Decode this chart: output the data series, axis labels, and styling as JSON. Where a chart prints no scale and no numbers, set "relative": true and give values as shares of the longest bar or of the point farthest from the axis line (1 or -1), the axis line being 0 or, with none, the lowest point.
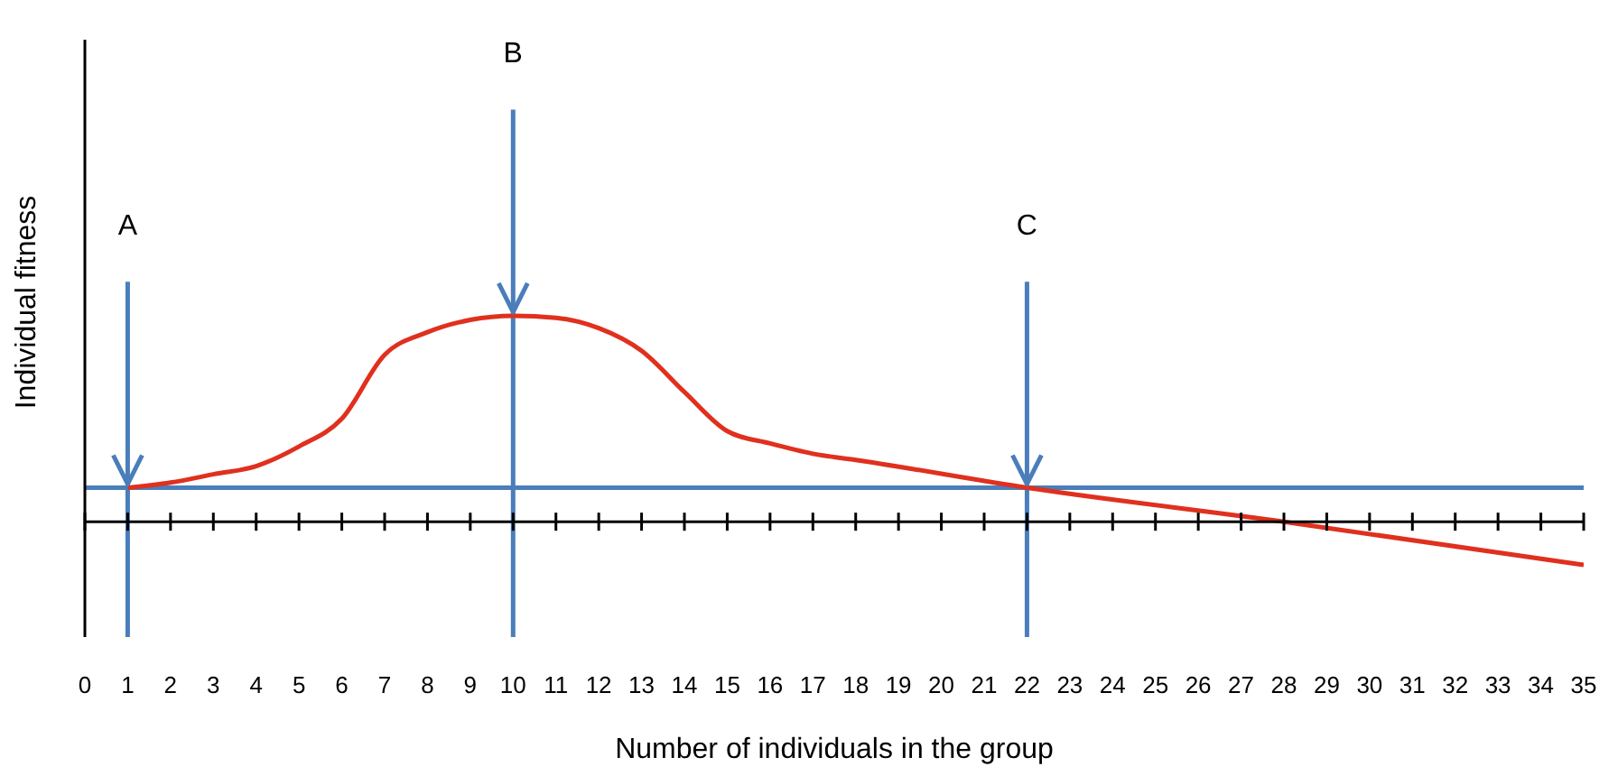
{
  "chart_data": {
    "type": "line",
    "relative": true,
    "xlabel": "Number of individuals in the group",
    "ylabel": "Individual fitness",
    "x": [
      1,
      2,
      3,
      4,
      5,
      6,
      7,
      8,
      9,
      10,
      11,
      12,
      13,
      14,
      15,
      16,
      17,
      18,
      22,
      28,
      35
    ],
    "series": [
      {
        "color": "#e0301e",
        "values": [
          0.165,
          0.19,
          0.23,
          0.27,
          0.365,
          0.5,
          0.81,
          0.92,
          0.98,
          1,
          0.99,
          0.94,
          0.83,
          0.63,
          0.44,
          0.38,
          0.33,
          0.3,
          0.165,
          0,
          -0.21
        ]
      }
    ],
    "xlim": [
      0,
      35
    ],
    "xticks": [
      0,
      1,
      2,
      3,
      4,
      5,
      6,
      7,
      8,
      9,
      10,
      11,
      12,
      13,
      14,
      15,
      16,
      17,
      18,
      19,
      20,
      21,
      22,
      23,
      24,
      25,
      26,
      27,
      28,
      29,
      30,
      31,
      32,
      33,
      34,
      35
    ],
    "marker": "none",
    "line_style": "solid",
    "ref_lines": [
      {
        "axis": "y",
        "value": 0.165,
        "color": "#4a7ebb"
      },
      {
        "axis": "x",
        "value": 1,
        "label": "A",
        "color": "#4a7ebb"
      },
      {
        "axis": "x",
        "value": 10,
        "label": "B",
        "color": "#4a7ebb"
      },
      {
        "axis": "x",
        "value": 22,
        "label": "C",
        "color": "#4a7ebb"
      }
    ]
  }
}
